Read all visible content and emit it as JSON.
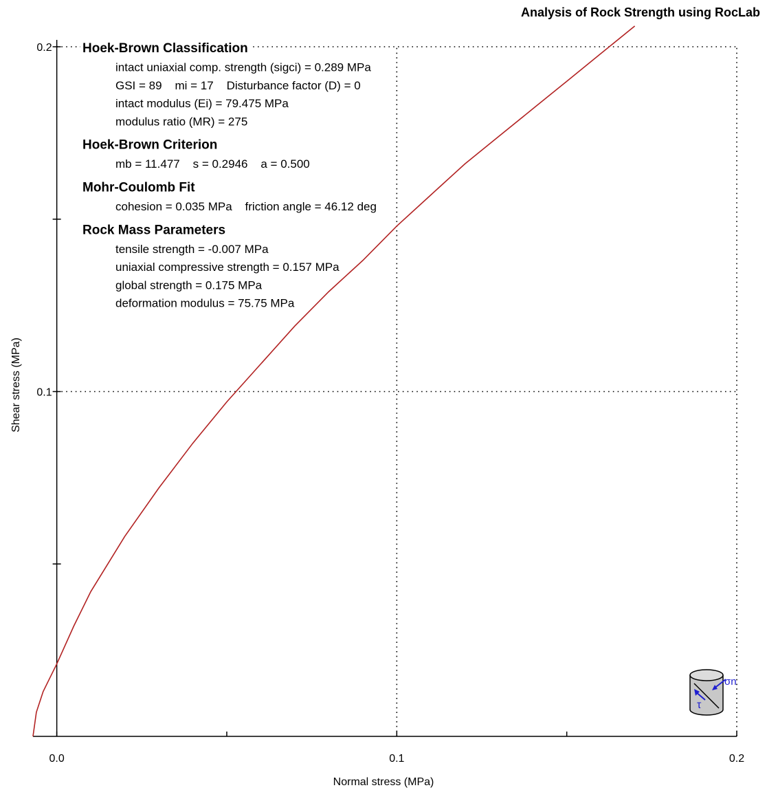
{
  "chart_data": {
    "type": "line",
    "title": "Analysis of Rock Strength using RocLab",
    "xlabel": "Normal stress (MPa)",
    "ylabel": "Shear stress (MPa)",
    "xlim": [
      -0.007,
      0.2
    ],
    "ylim": [
      0,
      0.2
    ],
    "x_tick_labels": [
      "0.0",
      "0.1",
      "0.2"
    ],
    "y_tick_labels": [
      "0.1",
      "0.2"
    ],
    "grid": "dotted",
    "series": [
      {
        "color": "#b22222",
        "x": [
          -0.007,
          -0.006,
          -0.004,
          -0.002,
          0.0,
          0.005,
          0.01,
          0.02,
          0.03,
          0.04,
          0.05,
          0.06,
          0.07,
          0.08,
          0.09,
          0.1,
          0.11,
          0.12,
          0.13,
          0.14,
          0.15,
          0.16,
          0.17
        ],
        "y": [
          0.0,
          0.007,
          0.013,
          0.017,
          0.021,
          0.032,
          0.042,
          0.058,
          0.072,
          0.085,
          0.097,
          0.108,
          0.119,
          0.129,
          0.138,
          0.148,
          0.157,
          0.166,
          0.174,
          0.182,
          0.19,
          0.198,
          0.206
        ]
      }
    ],
    "annotations": {
      "sections": [
        {
          "heading": "Hoek-Brown Classification",
          "lines": [
            "intact uniaxial comp. strength (sigci) = 0.289 MPa",
            "GSI = 89    mi = 17    Disturbance factor (D) = 0",
            "intact modulus (Ei) = 79.475 MPa",
            "modulus ratio (MR) = 275"
          ]
        },
        {
          "heading": "Hoek-Brown Criterion",
          "lines": [
            "mb = 11.477    s = 0.2946    a = 0.500"
          ]
        },
        {
          "heading": "Mohr-Coulomb Fit",
          "lines": [
            "cohesion = 0.035 MPa    friction angle = 46.12 deg"
          ]
        },
        {
          "heading": "Rock Mass Parameters",
          "lines": [
            "tensile strength = -0.007 MPa",
            "uniaxial compressive strength = 0.157 MPa",
            "global strength = 0.175 MPa",
            "deformation modulus = 75.75 MPa"
          ]
        }
      ]
    },
    "icon": {
      "name": "rock-sample-cylinder-icon",
      "sigma_label": "σn",
      "tau_label": "τ",
      "accent": "#1f1fd0"
    }
  }
}
